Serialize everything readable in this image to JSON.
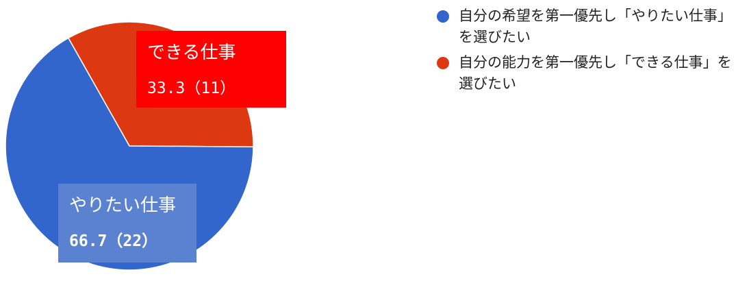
{
  "chart_data": {
    "type": "pie",
    "title": "",
    "slices": [
      {
        "legend": "自分の希望を第一優先し「やりたい仕事」を選びたい",
        "short_label": "やりたい仕事",
        "value_text": "66.7（22）",
        "percent": 66.7,
        "count": 22,
        "color": "#3366cc",
        "label_bg": "#5b82d0"
      },
      {
        "legend": "自分の能力を第一優先し「できる仕事」を選びたい",
        "short_label": "できる仕事",
        "value_text": "33.3（11）",
        "percent": 33.3,
        "count": 11,
        "color": "#dc3912",
        "label_bg": "#ff0000"
      }
    ],
    "legend_position": "right"
  }
}
